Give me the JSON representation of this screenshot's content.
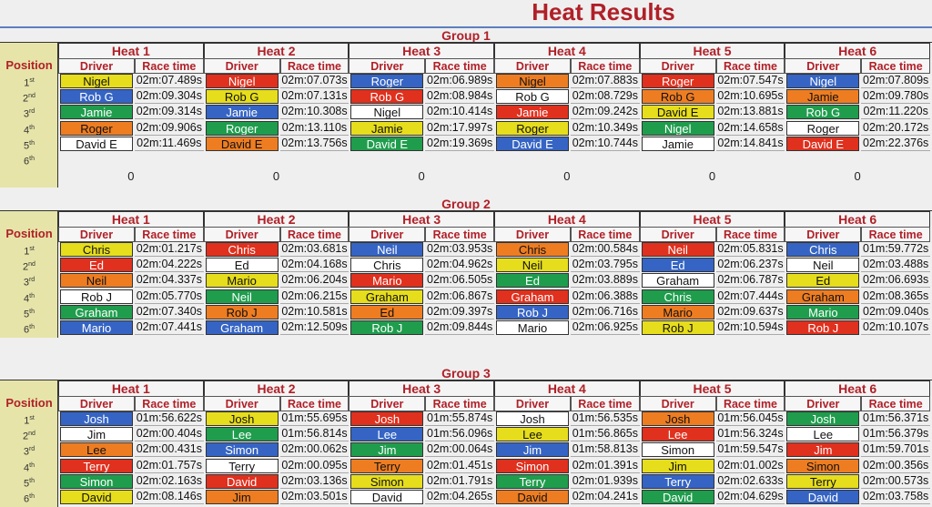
{
  "title": "Heat Results",
  "headers": {
    "position": "Position",
    "driver": "Driver",
    "race_time": "Race time"
  },
  "positions": [
    {
      "n": "1",
      "sup": "st"
    },
    {
      "n": "2",
      "sup": "nd"
    },
    {
      "n": "3",
      "sup": "rd"
    },
    {
      "n": "4",
      "sup": "th"
    },
    {
      "n": "5",
      "sup": "th"
    },
    {
      "n": "6",
      "sup": "th"
    }
  ],
  "groups": [
    {
      "name": "Group 1",
      "heats": [
        {
          "name": "Heat 1",
          "total": 0,
          "rows": [
            {
              "driver": "Nigel",
              "time": "02m:07.489s",
              "color": "#e6dd1c"
            },
            {
              "driver": "Rob G",
              "time": "02m:09.304s",
              "color": "#3564c4"
            },
            {
              "driver": "Jamie",
              "time": "02m:09.314s",
              "color": "#1f9d4d"
            },
            {
              "driver": "Roger",
              "time": "02m:09.906s",
              "color": "#ee7d22"
            },
            {
              "driver": "David E",
              "time": "02m:11.469s",
              "color": "#ffffff"
            }
          ]
        },
        {
          "name": "Heat 2",
          "total": 0,
          "rows": [
            {
              "driver": "Nigel",
              "time": "02m:07.073s",
              "color": "#e0301e"
            },
            {
              "driver": "Rob G",
              "time": "02m:07.131s",
              "color": "#e6dd1c"
            },
            {
              "driver": "Jamie",
              "time": "02m:10.308s",
              "color": "#3564c4"
            },
            {
              "driver": "Roger",
              "time": "02m:13.110s",
              "color": "#1f9d4d"
            },
            {
              "driver": "David E",
              "time": "02m:13.756s",
              "color": "#ee7d22"
            }
          ]
        },
        {
          "name": "Heat 3",
          "total": 0,
          "rows": [
            {
              "driver": "Roger",
              "time": "02m:06.989s",
              "color": "#3564c4"
            },
            {
              "driver": "Rob G",
              "time": "02m:08.984s",
              "color": "#e0301e"
            },
            {
              "driver": "Nigel",
              "time": "02m:10.414s",
              "color": "#ffffff"
            },
            {
              "driver": "Jamie",
              "time": "02m:17.997s",
              "color": "#e6dd1c"
            },
            {
              "driver": "David E",
              "time": "02m:19.369s",
              "color": "#1f9d4d"
            }
          ]
        },
        {
          "name": "Heat 4",
          "total": 0,
          "rows": [
            {
              "driver": "Nigel",
              "time": "02m:07.883s",
              "color": "#ee7d22"
            },
            {
              "driver": "Rob G",
              "time": "02m:08.729s",
              "color": "#ffffff"
            },
            {
              "driver": "Jamie",
              "time": "02m:09.242s",
              "color": "#e0301e"
            },
            {
              "driver": "Roger",
              "time": "02m:10.349s",
              "color": "#e6dd1c"
            },
            {
              "driver": "David E",
              "time": "02m:10.744s",
              "color": "#3564c4"
            }
          ]
        },
        {
          "name": "Heat 5",
          "total": 0,
          "rows": [
            {
              "driver": "Roger",
              "time": "02m:07.547s",
              "color": "#e0301e"
            },
            {
              "driver": "Rob G",
              "time": "02m:10.695s",
              "color": "#ee7d22"
            },
            {
              "driver": "David E",
              "time": "02m:13.881s",
              "color": "#e6dd1c"
            },
            {
              "driver": "Nigel",
              "time": "02m:14.658s",
              "color": "#1f9d4d"
            },
            {
              "driver": "Jamie",
              "time": "02m:14.841s",
              "color": "#ffffff"
            }
          ]
        },
        {
          "name": "Heat 6",
          "total": 0,
          "rows": [
            {
              "driver": "Nigel",
              "time": "02m:07.809s",
              "color": "#3564c4"
            },
            {
              "driver": "Jamie",
              "time": "02m:09.780s",
              "color": "#ee7d22"
            },
            {
              "driver": "Rob G",
              "time": "02m:11.220s",
              "color": "#1f9d4d"
            },
            {
              "driver": "Roger",
              "time": "02m:20.172s",
              "color": "#ffffff"
            },
            {
              "driver": "David E",
              "time": "02m:22.376s",
              "color": "#e0301e"
            }
          ]
        }
      ]
    },
    {
      "name": "Group 2",
      "heats": [
        {
          "name": "Heat 1",
          "rows": [
            {
              "driver": "Chris",
              "time": "02m:01.217s",
              "color": "#e6dd1c"
            },
            {
              "driver": "Ed",
              "time": "02m:04.222s",
              "color": "#e0301e"
            },
            {
              "driver": "Neil",
              "time": "02m:04.337s",
              "color": "#ee7d22"
            },
            {
              "driver": "Rob J",
              "time": "02m:05.770s",
              "color": "#ffffff"
            },
            {
              "driver": "Graham",
              "time": "02m:07.340s",
              "color": "#1f9d4d"
            },
            {
              "driver": "Mario",
              "time": "02m:07.441s",
              "color": "#3564c4"
            }
          ]
        },
        {
          "name": "Heat 2",
          "rows": [
            {
              "driver": "Chris",
              "time": "02m:03.681s",
              "color": "#e0301e"
            },
            {
              "driver": "Ed",
              "time": "02m:04.168s",
              "color": "#ffffff"
            },
            {
              "driver": "Mario",
              "time": "02m:06.204s",
              "color": "#e6dd1c"
            },
            {
              "driver": "Neil",
              "time": "02m:06.215s",
              "color": "#1f9d4d"
            },
            {
              "driver": "Rob J",
              "time": "02m:10.581s",
              "color": "#ee7d22"
            },
            {
              "driver": "Graham",
              "time": "02m:12.509s",
              "color": "#3564c4"
            }
          ]
        },
        {
          "name": "Heat 3",
          "rows": [
            {
              "driver": "Neil",
              "time": "02m:03.953s",
              "color": "#3564c4"
            },
            {
              "driver": "Chris",
              "time": "02m:04.962s",
              "color": "#ffffff"
            },
            {
              "driver": "Mario",
              "time": "02m:06.505s",
              "color": "#e0301e"
            },
            {
              "driver": "Graham",
              "time": "02m:06.867s",
              "color": "#e6dd1c"
            },
            {
              "driver": "Ed",
              "time": "02m:09.397s",
              "color": "#ee7d22"
            },
            {
              "driver": "Rob J",
              "time": "02m:09.844s",
              "color": "#1f9d4d"
            }
          ]
        },
        {
          "name": "Heat 4",
          "rows": [
            {
              "driver": "Chris",
              "time": "02m:00.584s",
              "color": "#ee7d22"
            },
            {
              "driver": "Neil",
              "time": "02m:03.795s",
              "color": "#e6dd1c"
            },
            {
              "driver": "Ed",
              "time": "02m:03.889s",
              "color": "#1f9d4d"
            },
            {
              "driver": "Graham",
              "time": "02m:06.388s",
              "color": "#e0301e"
            },
            {
              "driver": "Rob J",
              "time": "02m:06.716s",
              "color": "#3564c4"
            },
            {
              "driver": "Mario",
              "time": "02m:06.925s",
              "color": "#ffffff"
            }
          ]
        },
        {
          "name": "Heat 5",
          "rows": [
            {
              "driver": "Neil",
              "time": "02m:05.831s",
              "color": "#e0301e"
            },
            {
              "driver": "Ed",
              "time": "02m:06.237s",
              "color": "#3564c4"
            },
            {
              "driver": "Graham",
              "time": "02m:06.787s",
              "color": "#ffffff"
            },
            {
              "driver": "Chris",
              "time": "02m:07.444s",
              "color": "#1f9d4d"
            },
            {
              "driver": "Mario",
              "time": "02m:09.637s",
              "color": "#ee7d22"
            },
            {
              "driver": "Rob J",
              "time": "02m:10.594s",
              "color": "#e6dd1c"
            }
          ]
        },
        {
          "name": "Heat 6",
          "rows": [
            {
              "driver": "Chris",
              "time": "01m:59.772s",
              "color": "#3564c4"
            },
            {
              "driver": "Neil",
              "time": "02m:03.488s",
              "color": "#ffffff"
            },
            {
              "driver": "Ed",
              "time": "02m:06.693s",
              "color": "#e6dd1c"
            },
            {
              "driver": "Graham",
              "time": "02m:08.365s",
              "color": "#ee7d22"
            },
            {
              "driver": "Mario",
              "time": "02m:09.040s",
              "color": "#1f9d4d"
            },
            {
              "driver": "Rob J",
              "time": "02m:10.107s",
              "color": "#e0301e"
            }
          ]
        }
      ]
    },
    {
      "name": "Group 3",
      "heats": [
        {
          "name": "Heat 1",
          "rows": [
            {
              "driver": "Josh",
              "time": "01m:56.622s",
              "color": "#3564c4"
            },
            {
              "driver": "Jim",
              "time": "02m:00.404s",
              "color": "#ffffff"
            },
            {
              "driver": "Lee",
              "time": "02m:00.431s",
              "color": "#ee7d22"
            },
            {
              "driver": "Terry",
              "time": "02m:01.757s",
              "color": "#e0301e"
            },
            {
              "driver": "Simon",
              "time": "02m:02.163s",
              "color": "#1f9d4d"
            },
            {
              "driver": "David",
              "time": "02m:08.146s",
              "color": "#e6dd1c"
            }
          ]
        },
        {
          "name": "Heat 2",
          "rows": [
            {
              "driver": "Josh",
              "time": "01m:55.695s",
              "color": "#e6dd1c"
            },
            {
              "driver": "Lee",
              "time": "01m:56.814s",
              "color": "#1f9d4d"
            },
            {
              "driver": "Simon",
              "time": "02m:00.062s",
              "color": "#3564c4"
            },
            {
              "driver": "Terry",
              "time": "02m:00.095s",
              "color": "#ffffff"
            },
            {
              "driver": "David",
              "time": "02m:03.136s",
              "color": "#e0301e"
            },
            {
              "driver": "Jim",
              "time": "02m:03.501s",
              "color": "#ee7d22"
            }
          ]
        },
        {
          "name": "Heat 3",
          "rows": [
            {
              "driver": "Josh",
              "time": "01m:55.874s",
              "color": "#e0301e"
            },
            {
              "driver": "Lee",
              "time": "01m:56.096s",
              "color": "#3564c4"
            },
            {
              "driver": "Jim",
              "time": "02m:00.064s",
              "color": "#1f9d4d"
            },
            {
              "driver": "Terry",
              "time": "02m:01.451s",
              "color": "#ee7d22"
            },
            {
              "driver": "Simon",
              "time": "02m:01.791s",
              "color": "#e6dd1c"
            },
            {
              "driver": "David",
              "time": "02m:04.265s",
              "color": "#ffffff"
            }
          ]
        },
        {
          "name": "Heat 4",
          "rows": [
            {
              "driver": "Josh",
              "time": "01m:56.535s",
              "color": "#ffffff"
            },
            {
              "driver": "Lee",
              "time": "01m:56.865s",
              "color": "#e6dd1c"
            },
            {
              "driver": "Jim",
              "time": "01m:58.813s",
              "color": "#3564c4"
            },
            {
              "driver": "Simon",
              "time": "02m:01.391s",
              "color": "#e0301e"
            },
            {
              "driver": "Terry",
              "time": "02m:01.939s",
              "color": "#1f9d4d"
            },
            {
              "driver": "David",
              "time": "02m:04.241s",
              "color": "#ee7d22"
            }
          ]
        },
        {
          "name": "Heat 5",
          "rows": [
            {
              "driver": "Josh",
              "time": "01m:56.045s",
              "color": "#ee7d22"
            },
            {
              "driver": "Lee",
              "time": "01m:56.324s",
              "color": "#e0301e"
            },
            {
              "driver": "Simon",
              "time": "01m:59.547s",
              "color": "#ffffff"
            },
            {
              "driver": "Jim",
              "time": "02m:01.002s",
              "color": "#e6dd1c"
            },
            {
              "driver": "Terry",
              "time": "02m:02.633s",
              "color": "#3564c4"
            },
            {
              "driver": "David",
              "time": "02m:04.629s",
              "color": "#1f9d4d"
            }
          ]
        },
        {
          "name": "Heat 6",
          "rows": [
            {
              "driver": "Josh",
              "time": "01m:56.371s",
              "color": "#1f9d4d"
            },
            {
              "driver": "Lee",
              "time": "01m:56.379s",
              "color": "#ffffff"
            },
            {
              "driver": "Jim",
              "time": "01m:59.701s",
              "color": "#e0301e"
            },
            {
              "driver": "Simon",
              "time": "02m:00.356s",
              "color": "#ee7d22"
            },
            {
              "driver": "Terry",
              "time": "02m:00.573s",
              "color": "#e6dd1c"
            },
            {
              "driver": "David",
              "time": "02m:03.758s",
              "color": "#3564c4"
            }
          ]
        }
      ]
    }
  ]
}
